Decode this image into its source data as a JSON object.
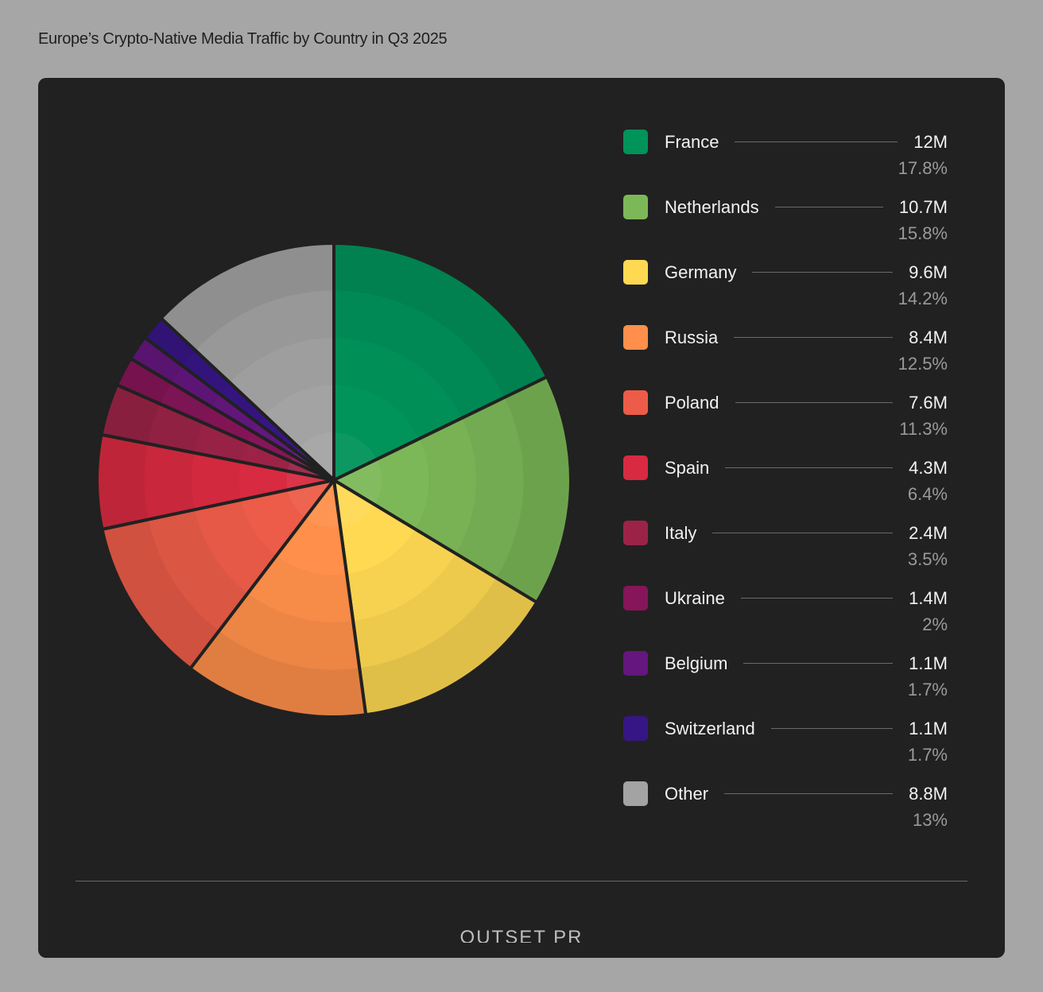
{
  "title": "Europe’s Crypto-Native Media Traffic by Country in Q3 2025",
  "logo": "OUTSET PR",
  "chart_data": {
    "type": "pie",
    "title": "Europe’s Crypto-Native Media Traffic by Country in Q3 2025",
    "start_angle": "12 o'clock",
    "direction": "clockwise",
    "legend_placement": "right",
    "slices": [
      {
        "label": "France",
        "value": "12M",
        "percent": 17.8,
        "percent_label": "17.8%",
        "color": "#00935a"
      },
      {
        "label": "Netherlands",
        "value": "10.7M",
        "percent": 15.8,
        "percent_label": "15.8%",
        "color": "#7cb858"
      },
      {
        "label": "Germany",
        "value": "9.6M",
        "percent": 14.2,
        "percent_label": "14.2%",
        "color": "#ffd952"
      },
      {
        "label": "Russia",
        "value": "8.4M",
        "percent": 12.5,
        "percent_label": "12.5%",
        "color": "#ff8f4a"
      },
      {
        "label": "Poland",
        "value": "7.6M",
        "percent": 11.3,
        "percent_label": "11.3%",
        "color": "#ec5c48"
      },
      {
        "label": "Spain",
        "value": "4.3M",
        "percent": 6.4,
        "percent_label": "6.4%",
        "color": "#d82a40"
      },
      {
        "label": "Italy",
        "value": "2.4M",
        "percent": 3.5,
        "percent_label": "3.5%",
        "color": "#9c2347"
      },
      {
        "label": "Ukraine",
        "value": "1.4M",
        "percent": 2,
        "percent_label": "2%",
        "color": "#861559"
      },
      {
        "label": "Belgium",
        "value": "1.1M",
        "percent": 1.7,
        "percent_label": "1.7%",
        "color": "#64177e"
      },
      {
        "label": "Switzerland",
        "value": "1.1M",
        "percent": 1.7,
        "percent_label": "1.7%",
        "color": "#361684"
      },
      {
        "label": "Other",
        "value": "8.8M",
        "percent": 13,
        "percent_label": "13%",
        "color": "#a3a3a3"
      }
    ]
  }
}
